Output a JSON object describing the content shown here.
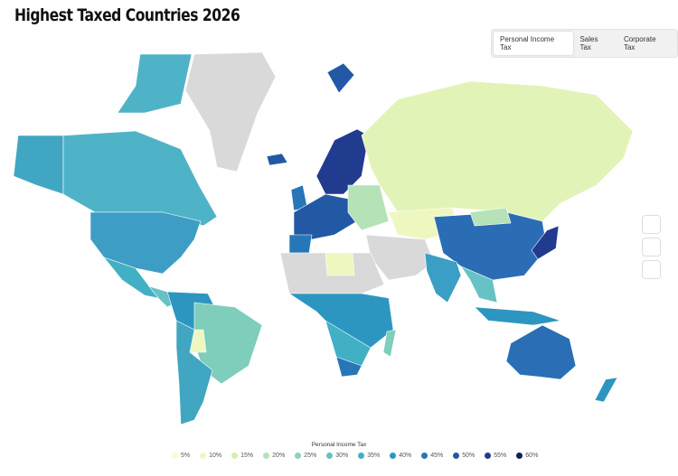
{
  "header": {
    "title": "Highest Taxed Countries 2026"
  },
  "tabs": [
    {
      "label": "Personal Income Tax",
      "active": true
    },
    {
      "label": "Sales Tax",
      "active": false
    },
    {
      "label": "Corporate Tax",
      "active": false
    }
  ],
  "legend": {
    "title": "Personal Income Tax",
    "items": [
      {
        "label": "5%",
        "color": "#fbfbd3"
      },
      {
        "label": "10%",
        "color": "#eef7c0"
      },
      {
        "label": "15%",
        "color": "#d7efb0"
      },
      {
        "label": "20%",
        "color": "#b6e2b8"
      },
      {
        "label": "25%",
        "color": "#8fd1bb"
      },
      {
        "label": "30%",
        "color": "#66c2c4"
      },
      {
        "label": "35%",
        "color": "#41b0c4"
      },
      {
        "label": "40%",
        "color": "#2d96c0"
      },
      {
        "label": "45%",
        "color": "#2777b8"
      },
      {
        "label": "50%",
        "color": "#2358a5"
      },
      {
        "label": "55%",
        "color": "#213b8f"
      },
      {
        "label": "60%",
        "color": "#0c1f5a"
      }
    ]
  }
}
